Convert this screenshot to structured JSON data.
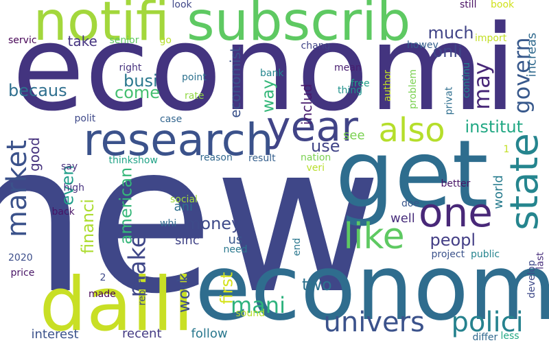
{
  "words": [
    {
      "text": "new",
      "color": "#3f4788",
      "vertical": false
    },
    {
      "text": "economi",
      "color": "#43347f",
      "vertical": false
    },
    {
      "text": "econom",
      "color": "#2f6d8e",
      "vertical": false
    },
    {
      "text": "daili",
      "color": "#c8df25",
      "vertical": false
    },
    {
      "text": "get",
      "color": "#2e6d8e",
      "vertical": false
    },
    {
      "text": "subscrib",
      "color": "#5ec962",
      "vertical": false
    },
    {
      "text": "notifi",
      "color": "#a3d73c",
      "vertical": false
    },
    {
      "text": "research",
      "color": "#3b528b",
      "vertical": false
    },
    {
      "text": "year",
      "color": "#414487",
      "vertical": false
    },
    {
      "text": "also",
      "color": "#b5de2b",
      "vertical": false
    },
    {
      "text": "state",
      "color": "#25858e",
      "vertical": true
    },
    {
      "text": "one",
      "color": "#482878",
      "vertical": false
    },
    {
      "text": "like",
      "color": "#5ec962",
      "vertical": false
    },
    {
      "text": "univers",
      "color": "#3b528b",
      "vertical": false
    },
    {
      "text": "polici",
      "color": "#26828e",
      "vertical": false
    },
    {
      "text": "market",
      "color": "#3b528b",
      "vertical": true
    },
    {
      "text": "make",
      "color": "#3f4788",
      "vertical": true
    },
    {
      "text": "mani",
      "color": "#2db27d",
      "vertical": false
    },
    {
      "text": "institut",
      "color": "#22a884",
      "vertical": false
    },
    {
      "text": "govern",
      "color": "#38598c",
      "vertical": true
    },
    {
      "text": "onli",
      "color": "#404688",
      "vertical": false
    },
    {
      "text": "much",
      "color": "#414487",
      "vertical": false
    },
    {
      "text": "busi",
      "color": "#2a788e",
      "vertical": false
    },
    {
      "text": "may",
      "color": "#482878",
      "vertical": true
    },
    {
      "text": "way",
      "color": "#35b779",
      "vertical": true
    },
    {
      "text": "peopl",
      "color": "#433e85",
      "vertical": false
    },
    {
      "text": "money",
      "color": "#3e4a89",
      "vertical": false
    },
    {
      "text": "american",
      "color": "#35b779",
      "vertical": true
    },
    {
      "text": "even",
      "color": "#1f9e89",
      "vertical": true
    },
    {
      "text": "financi",
      "color": "#addc30",
      "vertical": true
    },
    {
      "text": "work",
      "color": "#3d4e8a",
      "vertical": true
    },
    {
      "text": "first",
      "color": "#d5e21a",
      "vertical": true
    },
    {
      "text": "two",
      "color": "#2c728e",
      "vertical": false
    },
    {
      "text": "use",
      "color": "#414487",
      "vertical": false
    },
    {
      "text": "see",
      "color": "#7ad151",
      "vertical": false
    },
    {
      "text": "world",
      "color": "#287c8e",
      "vertical": true
    },
    {
      "text": "becaus",
      "color": "#2e6f8e",
      "vertical": false
    },
    {
      "text": "come",
      "color": "#44bf70",
      "vertical": false
    },
    {
      "text": "economist",
      "color": "#3b528b",
      "vertical": true
    },
    {
      "text": "includ",
      "color": "#481a6c",
      "vertical": true
    },
    {
      "text": "take",
      "color": "#463480",
      "vertical": false
    },
    {
      "text": "good",
      "color": "#46327e",
      "vertical": true
    },
    {
      "text": "sinc",
      "color": "#414487",
      "vertical": false
    },
    {
      "text": "well",
      "color": "#472d7b",
      "vertical": false
    },
    {
      "text": "ani",
      "color": "#2e6e8e",
      "vertical": false
    },
    {
      "text": "us",
      "color": "#39568c",
      "vertical": false
    },
    {
      "text": "follow",
      "color": "#2a788e",
      "vertical": false
    },
    {
      "text": "recent",
      "color": "#443a83",
      "vertical": false
    },
    {
      "text": "interest",
      "color": "#3b528b",
      "vertical": false
    },
    {
      "text": "increas",
      "color": "#306a8e",
      "vertical": true
    },
    {
      "text": "high",
      "color": "#46307e",
      "vertical": false
    },
    {
      "text": "back",
      "color": "#471365",
      "vertical": false
    },
    {
      "text": "social",
      "color": "#9fda3a",
      "vertical": false
    },
    {
      "text": "thinkshow",
      "color": "#20a386",
      "vertical": false
    },
    {
      "text": "reason",
      "color": "#31688e",
      "vertical": false
    },
    {
      "text": "result",
      "color": "#355f8d",
      "vertical": false
    },
    {
      "text": "nation",
      "color": "#7ad151",
      "vertical": false
    },
    {
      "text": "veri",
      "color": "#b8de29",
      "vertical": false
    },
    {
      "text": "say",
      "color": "#472f7d",
      "vertical": false
    },
    {
      "text": "polit",
      "color": "#3e4989",
      "vertical": false
    },
    {
      "text": "case",
      "color": "#32658e",
      "vertical": false
    },
    {
      "text": "point",
      "color": "#2c718e",
      "vertical": false
    },
    {
      "text": "rate",
      "color": "#90d743",
      "vertical": false
    },
    {
      "text": "bank",
      "color": "#24868e",
      "vertical": false
    },
    {
      "text": "mean",
      "color": "#481d6f",
      "vertical": false
    },
    {
      "text": "thing",
      "color": "#20928c",
      "vertical": false
    },
    {
      "text": "free",
      "color": "#1fa088",
      "vertical": false
    },
    {
      "text": "right",
      "color": "#46327e",
      "vertical": false
    },
    {
      "text": "servic",
      "color": "#440154",
      "vertical": false
    },
    {
      "text": "senior",
      "color": "#5ec962",
      "vertical": false
    },
    {
      "text": "go",
      "color": "#b5de2b",
      "vertical": false
    },
    {
      "text": "chang",
      "color": "#414487",
      "vertical": false
    },
    {
      "text": "howev",
      "color": "#355f8d",
      "vertical": false
    },
    {
      "text": "import",
      "color": "#c2df23",
      "vertical": false
    },
    {
      "text": "look",
      "color": "#3f4788",
      "vertical": false
    },
    {
      "text": "still",
      "color": "#471063",
      "vertical": false
    },
    {
      "text": "book",
      "color": "#d0e11c",
      "vertical": false
    },
    {
      "text": "author",
      "color": "#c2df23",
      "vertical": true
    },
    {
      "text": "problem",
      "color": "#7ad151",
      "vertical": true
    },
    {
      "text": "privat",
      "color": "#2e6e8e",
      "vertical": true
    },
    {
      "text": "continu",
      "color": "#25848e",
      "vertical": true
    },
    {
      "text": "better",
      "color": "#481467",
      "vertical": false
    },
    {
      "text": "doe",
      "color": "#39568c",
      "vertical": false
    },
    {
      "text": "end",
      "color": "#2a778e",
      "vertical": true
    },
    {
      "text": "need",
      "color": "#2a788e",
      "vertical": false
    },
    {
      "text": "project",
      "color": "#3b528b",
      "vertical": false
    },
    {
      "text": "public",
      "color": "#25848e",
      "vertical": false
    },
    {
      "text": "last",
      "color": "#472d7b",
      "vertical": true
    },
    {
      "text": "develop",
      "color": "#3e4a89",
      "vertical": true
    },
    {
      "text": "2020",
      "color": "#3d4e8a",
      "vertical": false
    },
    {
      "text": "price",
      "color": "#471365",
      "vertical": false
    },
    {
      "text": "made",
      "color": "#440154",
      "vertical": false
    },
    {
      "text": "report",
      "color": "#3e4989",
      "vertical": true
    },
    {
      "text": "sound",
      "color": "#b5de2b",
      "vertical": false
    },
    {
      "text": "differ",
      "color": "#31688e",
      "vertical": false
    },
    {
      "text": "less",
      "color": "#22a884",
      "vertical": false
    },
    {
      "text": "whi",
      "color": "#306a8e",
      "vertical": false
    },
    {
      "text": "1",
      "color": "#c2df23",
      "vertical": false
    },
    {
      "text": "2",
      "color": "#3e4989",
      "vertical": false
    }
  ]
}
